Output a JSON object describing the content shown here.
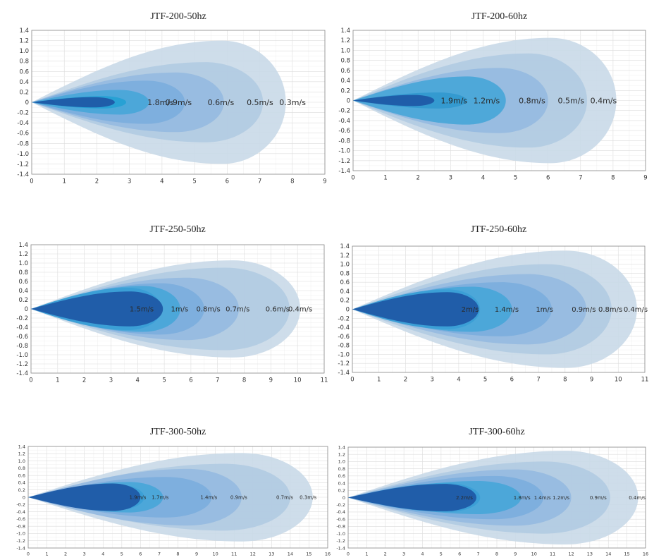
{
  "chart_data": [
    {
      "type": "area",
      "title": "JTF-200-50hz",
      "xlim": [
        0,
        9
      ],
      "ylim": [
        -1.4,
        1.4
      ],
      "xticks": [
        "0",
        "1",
        "2",
        "3",
        "4",
        "5",
        "6",
        "7",
        "8",
        "9"
      ],
      "yticks": [
        "1.4",
        "1.2",
        "1.0",
        "0.8",
        "0.6",
        "0.4",
        "0.2",
        "0",
        "-0.2",
        "-0.4",
        "-0.6",
        "-0.8",
        "-1.0",
        "-1.2",
        "-1.4"
      ],
      "grid": true,
      "series": [
        {
          "name": "0.3m/s",
          "reach": 7.8,
          "width": 1.2,
          "color": "#c9d9e8"
        },
        {
          "name": "0.5m/s",
          "reach": 7.1,
          "width": 0.78,
          "color": "#b2cbe3"
        },
        {
          "name": "0.6m/s",
          "reach": 5.9,
          "width": 0.58,
          "color": "#97bbe0"
        },
        {
          "name": "0.9m/s",
          "reach": 4.7,
          "width": 0.42,
          "color": "#7caedd"
        },
        {
          "name": "1.8m/s",
          "reach": 3.6,
          "width": 0.24,
          "color": "#4aa6d8"
        },
        {
          "name": "",
          "reach": 2.9,
          "width": 0.12,
          "color": "#26a0d4"
        },
        {
          "name": "",
          "reach": 2.55,
          "width": 0.1,
          "color": "#1f5aa6"
        }
      ],
      "label_x": [
        3.55,
        4.1,
        5.4,
        6.6,
        7.6
      ]
    },
    {
      "type": "area",
      "title": "JTF-200-60hz",
      "xlim": [
        0,
        9
      ],
      "ylim": [
        -1.4,
        1.4
      ],
      "xticks": [
        "0",
        "1",
        "2",
        "3",
        "4",
        "5",
        "6",
        "7",
        "8",
        "9"
      ],
      "yticks": [
        "1.4",
        "1.2",
        "1.0",
        "0.8",
        "0.6",
        "0.4",
        "0.2",
        "0",
        "-0.2",
        "-0.4",
        "-0.6",
        "-0.8",
        "-1.0",
        "-1.2",
        "-1.4"
      ],
      "grid": true,
      "series": [
        {
          "name": "0.4m/s",
          "reach": 8.1,
          "width": 1.25,
          "color": "#c9d9e8"
        },
        {
          "name": "0.5m/s",
          "reach": 7.2,
          "width": 0.94,
          "color": "#b2cbe3"
        },
        {
          "name": "0.8m/s",
          "reach": 6.0,
          "width": 0.65,
          "color": "#97bbe0"
        },
        {
          "name": "1.2m/s",
          "reach": 4.7,
          "width": 0.48,
          "color": "#4aa6d8"
        },
        {
          "name": "1.9m/s",
          "reach": 3.5,
          "width": 0.16,
          "color": "#3399d0"
        },
        {
          "name": "",
          "reach": 2.5,
          "width": 0.11,
          "color": "#1f5aa6"
        }
      ],
      "label_x": [
        2.7,
        3.7,
        5.1,
        6.3,
        7.3
      ]
    },
    {
      "type": "area",
      "title": "JTF-250-50hz",
      "xlim": [
        0,
        11
      ],
      "ylim": [
        -1.4,
        1.4
      ],
      "xticks": [
        "0",
        "1",
        "2",
        "3",
        "4",
        "5",
        "6",
        "7",
        "8",
        "9",
        "10",
        "11"
      ],
      "yticks": [
        "1.4",
        "1.2",
        "1.0",
        "0.8",
        "0.6",
        "0.4",
        "0.2",
        "0",
        "-0.2",
        "-0.4",
        "-0.6",
        "-0.8",
        "-1.0",
        "-1.2",
        "-1.4"
      ],
      "grid": true,
      "series": [
        {
          "name": "0.4m/s",
          "reach": 10.1,
          "width": 1.06,
          "color": "#c9d9e8"
        },
        {
          "name": "0.6m/s",
          "reach": 9.7,
          "width": 0.9,
          "color": "#b2cbe3"
        },
        {
          "name": "0.7m/s",
          "reach": 7.8,
          "width": 0.68,
          "color": "#97bbe0"
        },
        {
          "name": "0.8m/s",
          "reach": 6.5,
          "width": 0.56,
          "color": "#7caedd"
        },
        {
          "name": "1m/s",
          "reach": 5.6,
          "width": 0.5,
          "color": "#4aa6d8"
        },
        {
          "name": "1.5m/s",
          "reach": 4.9,
          "width": 0.46,
          "color": "#3a9ed6"
        },
        {
          "name": "",
          "reach": 4.95,
          "width": 0.38,
          "color": "#1f5aa6"
        }
      ],
      "label_x": [
        3.7,
        5.25,
        6.2,
        7.3,
        8.8,
        9.65
      ]
    },
    {
      "type": "area",
      "title": "JTF-250-60hz",
      "xlim": [
        0,
        11
      ],
      "ylim": [
        -1.4,
        1.4
      ],
      "xticks": [
        "0",
        "1",
        "2",
        "3",
        "4",
        "5",
        "6",
        "7",
        "8",
        "9",
        "10",
        "11"
      ],
      "yticks": [
        "1.4",
        "1.2",
        "1.0",
        "0.8",
        "0.6",
        "0.4",
        "0.2",
        "0",
        "-0.2",
        "-0.4",
        "-0.6",
        "-0.8",
        "-1.0",
        "-1.2",
        "-1.4"
      ],
      "grid": true,
      "series": [
        {
          "name": "0.4m/s",
          "reach": 10.7,
          "width": 1.3,
          "color": "#c9d9e8"
        },
        {
          "name": "0.8m/s",
          "reach": 9.75,
          "width": 1.0,
          "color": "#b2cbe3"
        },
        {
          "name": "0.9m/s",
          "reach": 8.8,
          "width": 0.78,
          "color": "#97bbe0"
        },
        {
          "name": "1m/s",
          "reach": 7.5,
          "width": 0.6,
          "color": "#7caedd"
        },
        {
          "name": "1.4m/s",
          "reach": 6.0,
          "width": 0.5,
          "color": "#4aa6d8"
        },
        {
          "name": "2m/s",
          "reach": 4.8,
          "width": 0.44,
          "color": "#3a9ed6"
        },
        {
          "name": "",
          "reach": 4.75,
          "width": 0.38,
          "color": "#1f5aa6"
        }
      ],
      "label_x": [
        4.1,
        5.35,
        6.9,
        8.25,
        9.25,
        10.2
      ]
    },
    {
      "type": "area",
      "title": "JTF-300-50hz",
      "xlim": [
        0,
        16
      ],
      "ylim": [
        -1.4,
        1.4
      ],
      "xticks": [
        "0",
        "1",
        "2",
        "3",
        "4",
        "5",
        "6",
        "7",
        "8",
        "9",
        "10",
        "11",
        "12",
        "13",
        "14",
        "15",
        "16"
      ],
      "yticks": [
        "1.4",
        "1.2",
        "1.0",
        "0.8",
        "0.6",
        "0.4",
        "0.2",
        "0",
        "-0.2",
        "-0.4",
        "-0.6",
        "-0.8",
        "-1.0",
        "-1.2",
        "-1.4"
      ],
      "grid": true,
      "series": [
        {
          "name": "0.3m/s",
          "reach": 15.2,
          "width": 1.22,
          "color": "#c9d9e8"
        },
        {
          "name": "0.7m/s",
          "reach": 14.0,
          "width": 0.92,
          "color": "#b2cbe3"
        },
        {
          "name": "0.9m/s",
          "reach": 11.4,
          "width": 0.78,
          "color": "#97bbe0"
        },
        {
          "name": "1.4m/s",
          "reach": 9.8,
          "width": 0.56,
          "color": "#7caedd"
        },
        {
          "name": "1.7m/s",
          "reach": 7.2,
          "width": 0.42,
          "color": "#4aa6d8"
        },
        {
          "name": "1.9m/s",
          "reach": 6.2,
          "width": 0.36,
          "color": "#3a9ed6"
        },
        {
          "name": "",
          "reach": 6.0,
          "width": 0.38,
          "color": "#1f5aa6"
        }
      ],
      "label_x": [
        5.4,
        6.6,
        9.2,
        10.8,
        13.25,
        14.5
      ]
    },
    {
      "type": "area",
      "title": "JTF-300-60hz",
      "xlim": [
        0,
        16
      ],
      "ylim": [
        -1.4,
        1.4
      ],
      "xticks": [
        "0",
        "1",
        "2",
        "3",
        "4",
        "5",
        "6",
        "7",
        "8",
        "9",
        "10",
        "11",
        "12",
        "13",
        "14",
        "15",
        "16"
      ],
      "yticks": [
        "1.4",
        "1.2",
        "1.0",
        "0.8",
        "0.6",
        "0.4",
        "0.2",
        "0",
        "-0.2",
        "-0.4",
        "-0.6",
        "-0.8",
        "-1.0",
        "-1.2",
        "-1.4"
      ],
      "grid": true,
      "series": [
        {
          "name": "0.4m/s",
          "reach": 15.6,
          "width": 1.3,
          "color": "#c9d9e8"
        },
        {
          "name": "0.9m/s",
          "reach": 14.1,
          "width": 1.0,
          "color": "#b2cbe3"
        },
        {
          "name": "1.2m/s",
          "reach": 12.0,
          "width": 0.78,
          "color": "#97bbe0"
        },
        {
          "name": "1.4m/s",
          "reach": 10.5,
          "width": 0.6,
          "color": "#7caedd"
        },
        {
          "name": "1.8m/s",
          "reach": 9.3,
          "width": 0.46,
          "color": "#4aa6d8"
        },
        {
          "name": "2.2m/s",
          "reach": 7.1,
          "width": 0.4,
          "color": "#3a9ed6"
        },
        {
          "name": "",
          "reach": 6.9,
          "width": 0.38,
          "color": "#1f5aa6"
        }
      ],
      "label_x": [
        5.8,
        8.9,
        10.0,
        11.0,
        13.0,
        15.1
      ]
    }
  ]
}
